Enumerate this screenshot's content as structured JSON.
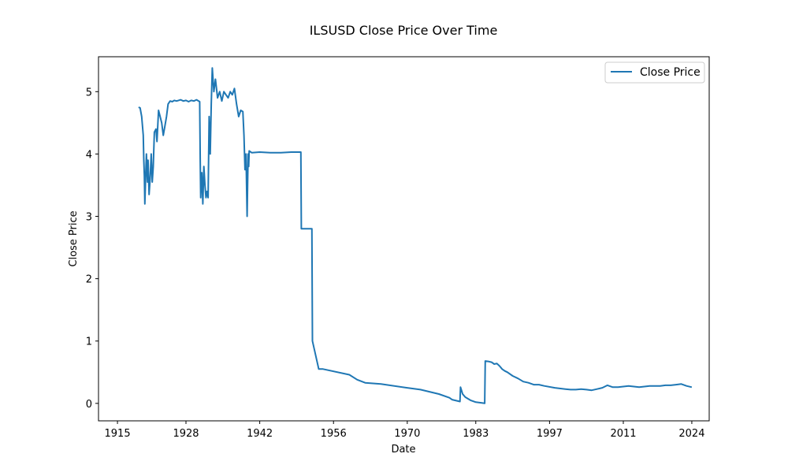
{
  "chart_data": {
    "type": "line",
    "title": "ILSUSD Close Price Over Time",
    "xlabel": "Date",
    "ylabel": "Close Price",
    "xlim": [
      1911.4,
      2027.3
    ],
    "ylim": [
      -0.28,
      5.56
    ],
    "x_ticks": [
      1915,
      1928,
      1942,
      1956,
      1970,
      1983,
      1997,
      2011,
      2024
    ],
    "y_ticks": [
      0,
      1,
      2,
      3,
      4,
      5
    ],
    "grid": false,
    "legend_position": "top-right",
    "line_color": "#1f77b4",
    "series": [
      {
        "name": "Close Price",
        "x": [
          1919.0,
          1919.3,
          1919.6,
          1919.9,
          1920.0,
          1920.1,
          1920.2,
          1920.3,
          1920.5,
          1920.7,
          1920.8,
          1921.0,
          1921.2,
          1921.4,
          1921.6,
          1921.8,
          1922.0,
          1922.3,
          1922.5,
          1922.8,
          1923.1,
          1923.4,
          1923.7,
          1924.0,
          1924.3,
          1924.6,
          1925.0,
          1925.4,
          1925.8,
          1926.2,
          1926.6,
          1927.0,
          1927.5,
          1928.0,
          1928.5,
          1929.0,
          1929.5,
          1930.0,
          1930.6,
          1930.7,
          1930.8,
          1930.9,
          1931.0,
          1931.2,
          1931.4,
          1931.6,
          1931.8,
          1932.0,
          1932.2,
          1932.4,
          1932.6,
          1932.8,
          1933.0,
          1933.3,
          1933.6,
          1934.0,
          1934.4,
          1934.8,
          1935.2,
          1935.6,
          1936.0,
          1936.4,
          1936.8,
          1937.2,
          1937.6,
          1938.0,
          1938.4,
          1938.8,
          1939.0,
          1939.2,
          1939.4,
          1939.6,
          1939.7,
          1939.8,
          1939.9,
          1940.0,
          1940.5,
          1942.0,
          1944.0,
          1946.0,
          1948.0,
          1949.0,
          1949.8,
          1949.9,
          1950.5,
          1951.3,
          1951.9,
          1952.0,
          1953.2,
          1953.6,
          1954.0,
          1959.0,
          1960.5,
          1962.0,
          1965.0,
          1970.0,
          1972.5,
          1976.0,
          1978.0,
          1978.5,
          1980.0,
          1980.1,
          1980.5,
          1981.0,
          1982.0,
          1983.0,
          1984.0,
          1984.7,
          1984.8,
          1985.5,
          1986.0,
          1986.5,
          1987.0,
          1987.5,
          1988.0,
          1988.5,
          1989.0,
          1990.0,
          1991.0,
          1992.0,
          1993.0,
          1994.0,
          1995.0,
          1996.0,
          1998.0,
          2000.0,
          2001.0,
          2002.0,
          2003.0,
          2004.0,
          2005.0,
          2006.0,
          2007.0,
          2008.0,
          2009.0,
          2010.0,
          2011.0,
          2012.0,
          2013.0,
          2014.0,
          2015.0,
          2016.0,
          2017.0,
          2018.0,
          2019.0,
          2020.0,
          2021.0,
          2022.0,
          2023.0,
          2024.0
        ],
        "y": [
          4.75,
          4.74,
          4.6,
          4.3,
          3.9,
          3.65,
          3.2,
          3.5,
          4.0,
          3.55,
          3.9,
          3.35,
          3.6,
          4.0,
          3.55,
          3.8,
          4.35,
          4.4,
          4.2,
          4.7,
          4.6,
          4.5,
          4.3,
          4.45,
          4.6,
          4.8,
          4.85,
          4.84,
          4.86,
          4.85,
          4.86,
          4.87,
          4.85,
          4.86,
          4.84,
          4.86,
          4.85,
          4.87,
          4.84,
          3.9,
          3.3,
          3.6,
          3.7,
          3.2,
          3.8,
          3.5,
          3.3,
          3.4,
          3.3,
          4.6,
          4.0,
          4.8,
          5.38,
          5.0,
          5.2,
          4.9,
          5.0,
          4.85,
          5.0,
          4.95,
          4.9,
          5.0,
          4.95,
          5.05,
          4.8,
          4.6,
          4.7,
          4.68,
          4.3,
          3.75,
          4.0,
          3.0,
          3.5,
          4.0,
          3.8,
          4.05,
          4.02,
          4.03,
          4.02,
          4.02,
          4.03,
          4.03,
          4.03,
          2.8,
          2.8,
          2.8,
          2.8,
          1.0,
          0.55,
          0.55,
          0.55,
          0.46,
          0.38,
          0.33,
          0.31,
          0.25,
          0.22,
          0.15,
          0.09,
          0.06,
          0.03,
          0.26,
          0.15,
          0.1,
          0.05,
          0.02,
          0.01,
          0.0,
          0.68,
          0.67,
          0.66,
          0.63,
          0.64,
          0.6,
          0.55,
          0.52,
          0.5,
          0.44,
          0.4,
          0.35,
          0.33,
          0.3,
          0.3,
          0.28,
          0.25,
          0.23,
          0.22,
          0.22,
          0.23,
          0.22,
          0.21,
          0.23,
          0.25,
          0.29,
          0.26,
          0.26,
          0.27,
          0.28,
          0.27,
          0.26,
          0.27,
          0.28,
          0.28,
          0.28,
          0.29,
          0.29,
          0.3,
          0.31,
          0.28,
          0.26
        ]
      }
    ]
  }
}
